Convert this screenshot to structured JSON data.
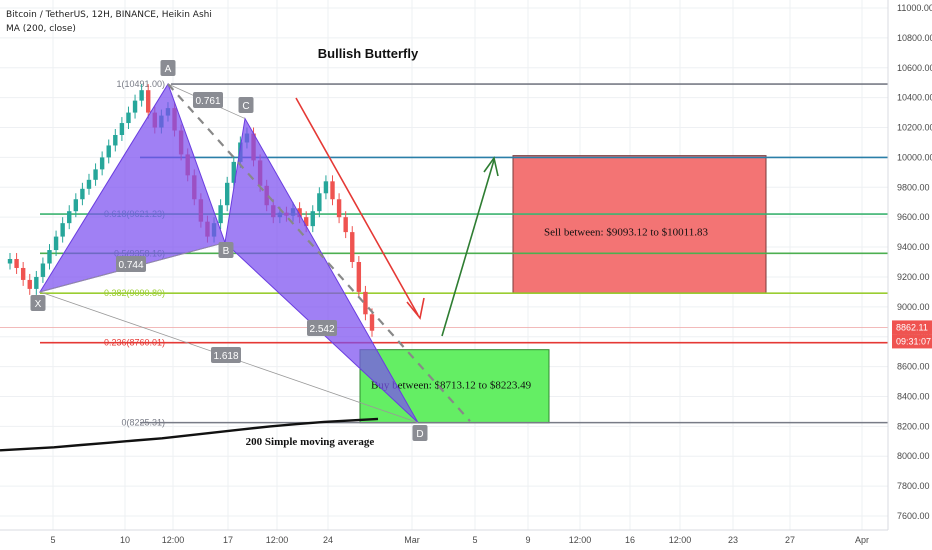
{
  "header": {
    "symbol_line": "Bitcoin / TetherUS, 12H, BINANCE, Heikin Ashi",
    "indicator_line": "MA (200, close)"
  },
  "chart_data": {
    "type": "candlestick",
    "title": "Bullish Butterfly",
    "y_axis": {
      "min": 7530,
      "max": 11080,
      "ticks": [
        11000,
        10800,
        10600,
        10400,
        10200,
        10000,
        9800,
        9600,
        9400,
        9200,
        9000,
        8800,
        8600,
        8400,
        8200,
        8000,
        7800,
        7600
      ],
      "tick_labels": [
        "11000.00",
        "10800.00",
        "10600.00",
        "10400.00",
        "10200.00",
        "10000.00",
        "9800.00",
        "9600.00",
        "9400.00",
        "9200.00",
        "9000.00",
        "8800.00",
        "8600.00",
        "8400.00",
        "8200.00",
        "8000.00",
        "7800.00",
        "7600.00"
      ],
      "price_tag": {
        "value": 8862.11,
        "label": "8862.11",
        "time": "09:31:07"
      }
    },
    "x_axis": {
      "labels": [
        "5",
        "10",
        "12:00",
        "17",
        "12:00",
        "24",
        "Mar",
        "5",
        "9",
        "12:00",
        "16",
        "12:00",
        "23",
        "27",
        "Apr"
      ]
    },
    "fib_levels": [
      {
        "ratio_label": "1(10491.00)",
        "price": 10491,
        "color": "#787b86"
      },
      {
        "ratio_label": "",
        "price": 10000,
        "color": "#2a7fa8"
      },
      {
        "ratio_label": "0.618(9621.23)",
        "price": 9621,
        "color": "#3cb371"
      },
      {
        "ratio_label": "0.5(9358.16)",
        "price": 9358,
        "color": "#4caf50"
      },
      {
        "ratio_label": "0.382(9090.80)",
        "price": 9091,
        "color": "#9acd32"
      },
      {
        "ratio_label": "0.236(8760.01)",
        "price": 8760,
        "color": "#e53935"
      },
      {
        "ratio_label": "0(8225.31)",
        "price": 8225,
        "color": "#787b86"
      }
    ],
    "pattern_points": [
      {
        "name": "X",
        "price": 9100
      },
      {
        "name": "A",
        "price": 10491
      },
      {
        "name": "B",
        "price": 9430
      },
      {
        "name": "C",
        "price": 10260
      },
      {
        "name": "D",
        "price": 8225
      }
    ],
    "ratios": [
      "0.761",
      "0.744",
      "2.542",
      "1.618"
    ],
    "zones": [
      {
        "name": "sell",
        "label": "Sell between: $9093.12 to $10011.83",
        "low": 9093.12,
        "high": 10011.83,
        "color": "#f26d6d"
      },
      {
        "name": "buy",
        "label": "Buy between: $8713.12 to $8223.49",
        "low": 8223.49,
        "high": 8713.12,
        "color": "#5ced5c"
      }
    ],
    "ma_label": "200 Simple moving average",
    "candles": [
      [
        9290,
        9320
      ],
      [
        9320,
        9260
      ],
      [
        9260,
        9180
      ],
      [
        9180,
        9120
      ],
      [
        9120,
        9200
      ],
      [
        9200,
        9290
      ],
      [
        9290,
        9380
      ],
      [
        9380,
        9470
      ],
      [
        9470,
        9560
      ],
      [
        9560,
        9640
      ],
      [
        9640,
        9720
      ],
      [
        9720,
        9790
      ],
      [
        9790,
        9850
      ],
      [
        9850,
        9920
      ],
      [
        9920,
        10000
      ],
      [
        10000,
        10080
      ],
      [
        10080,
        10150
      ],
      [
        10150,
        10230
      ],
      [
        10230,
        10300
      ],
      [
        10300,
        10380
      ],
      [
        10380,
        10450
      ],
      [
        10450,
        10300
      ],
      [
        10300,
        10200
      ],
      [
        10200,
        10280
      ],
      [
        10280,
        10330
      ],
      [
        10330,
        10180
      ],
      [
        10180,
        10020
      ],
      [
        10020,
        9880
      ],
      [
        9880,
        9720
      ],
      [
        9720,
        9570
      ],
      [
        9570,
        9470
      ],
      [
        9470,
        9560
      ],
      [
        9560,
        9680
      ],
      [
        9680,
        9830
      ],
      [
        9830,
        9970
      ],
      [
        9970,
        10100
      ],
      [
        10100,
        10160
      ],
      [
        10160,
        9980
      ],
      [
        9980,
        9810
      ],
      [
        9810,
        9680
      ],
      [
        9680,
        9600
      ],
      [
        9600,
        9630
      ],
      [
        9630,
        9610
      ],
      [
        9610,
        9660
      ],
      [
        9660,
        9600
      ],
      [
        9600,
        9540
      ],
      [
        9540,
        9640
      ],
      [
        9640,
        9760
      ],
      [
        9760,
        9840
      ],
      [
        9840,
        9720
      ],
      [
        9720,
        9600
      ],
      [
        9600,
        9500
      ],
      [
        9500,
        9300
      ],
      [
        9300,
        9100
      ],
      [
        9100,
        8950
      ],
      [
        8950,
        8840
      ]
    ],
    "ma_values": [
      8040,
      8050,
      8060,
      8075,
      8090,
      8105,
      8120,
      8140,
      8160,
      8180,
      8200,
      8215,
      8230,
      8240,
      8250
    ]
  }
}
